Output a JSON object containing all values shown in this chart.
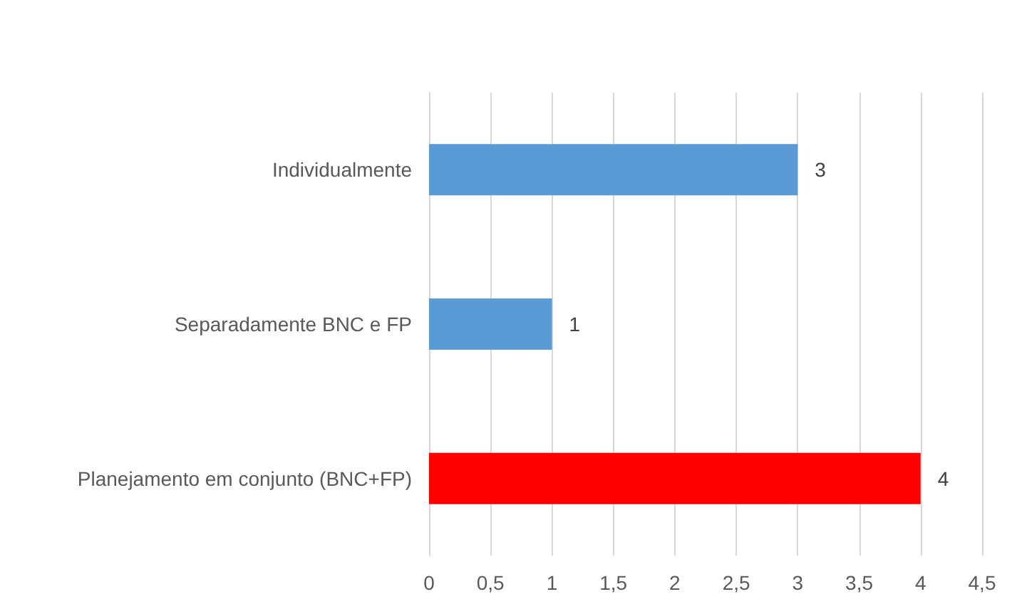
{
  "chart_data": {
    "type": "bar",
    "orientation": "horizontal",
    "categories": [
      "Individualmente",
      "Separadamente BNC e FP",
      "Planejamento em conjunto (BNC+FP)"
    ],
    "values": [
      3,
      1,
      4
    ],
    "colors": [
      "#5b9bd5",
      "#5b9bd5",
      "#ff0000"
    ],
    "xlim": [
      0,
      4.5
    ],
    "xticks": [
      0,
      {
        "value": 0.5,
        "label": "0,5"
      },
      1,
      {
        "value": 1.5,
        "label": "1,5"
      },
      2,
      {
        "value": 2.5,
        "label": "2,5"
      },
      3,
      {
        "value": 3.5,
        "label": "3,5"
      },
      4,
      {
        "value": 4.5,
        "label": "4,5"
      }
    ],
    "grid": "x",
    "data_labels": true
  }
}
